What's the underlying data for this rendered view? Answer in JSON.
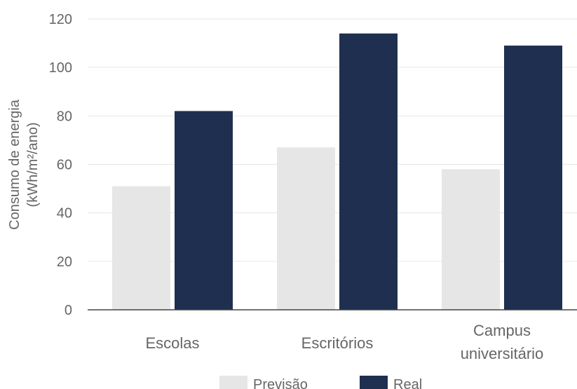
{
  "chart_data": {
    "type": "bar",
    "title": "",
    "xlabel": "",
    "ylabel": "Consumo de energia (kWh/m²/ano)",
    "ylabel_lines": [
      "Consumo de energia",
      "(kWh/m²/ano)"
    ],
    "ylim": [
      0,
      120
    ],
    "yticks": [
      0,
      20,
      40,
      60,
      80,
      100,
      120
    ],
    "grid": true,
    "legend_position": "bottom-center",
    "categories": [
      "Escolas",
      "Escritórios",
      "Campus universitário"
    ],
    "category_lines": [
      [
        "Escolas"
      ],
      [
        "Escritórios"
      ],
      [
        "Campus",
        "universitário"
      ]
    ],
    "series": [
      {
        "name": "Previsão",
        "color": "#e6e6e6",
        "values": [
          51,
          67,
          58
        ]
      },
      {
        "name": "Real",
        "color": "#1f2f50",
        "values": [
          82,
          114,
          109
        ]
      }
    ]
  }
}
